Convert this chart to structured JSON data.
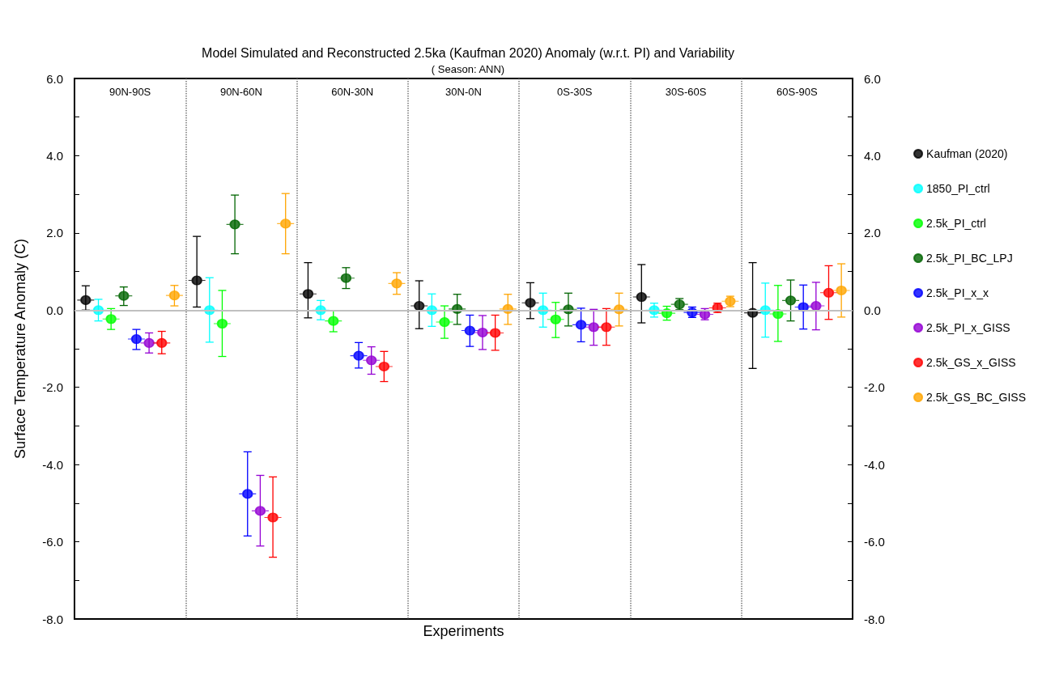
{
  "chart_data": {
    "type": "scatter",
    "title": "Model Simulated and Reconstructed 2.5ka (Kaufman 2020) Anomaly (w.r.t. PI) and Variability",
    "subtitle": "( Season: ANN)",
    "xlabel": "Experiments",
    "ylabel": "Surface Temperature Anomaly (C)",
    "categories": [
      "90N-90S",
      "90N-60N",
      "60N-30N",
      "30N-0N",
      "0S-30S",
      "30S-60S",
      "60S-90S"
    ],
    "series": [
      {
        "name": "Kaufman (2020)",
        "color": "#000000",
        "values": [
          0.26,
          0.77,
          0.42,
          0.11,
          0.19,
          0.34,
          -0.07
        ],
        "errors": [
          [
            0.0,
            0.63
          ],
          [
            0.08,
            1.91
          ],
          [
            -0.2,
            1.23
          ],
          [
            -0.48,
            0.76
          ],
          [
            -0.22,
            0.71
          ],
          [
            -0.33,
            1.18
          ],
          [
            -1.51,
            1.23
          ]
        ]
      },
      {
        "name": "1850_PI_ctrl",
        "color": "#00ffff",
        "values": [
          0,
          0,
          0,
          0,
          0,
          0,
          0
        ],
        "errors": [
          [
            -0.28,
            0.28
          ],
          [
            -0.83,
            0.84
          ],
          [
            -0.25,
            0.25
          ],
          [
            -0.42,
            0.42
          ],
          [
            -0.44,
            0.44
          ],
          [
            -0.18,
            0.18
          ],
          [
            -0.7,
            0.7
          ]
        ]
      },
      {
        "name": "2.5k_PI_ctrl",
        "color": "#00ff00",
        "values": [
          -0.23,
          -0.35,
          -0.28,
          -0.31,
          -0.24,
          -0.08,
          -0.1
        ],
        "errors": [
          [
            -0.5,
            0.04
          ],
          [
            -1.2,
            0.51
          ],
          [
            -0.56,
            -0.01
          ],
          [
            -0.73,
            0.11
          ],
          [
            -0.71,
            0.2
          ],
          [
            -0.26,
            0.1
          ],
          [
            -0.81,
            0.64
          ]
        ]
      },
      {
        "name": "2.5k_PI_BC_LPJ",
        "color": "#006400",
        "values": [
          0.37,
          2.22,
          0.83,
          0.03,
          0.02,
          0.15,
          0.25
        ],
        "errors": [
          [
            0.12,
            0.6
          ],
          [
            1.46,
            2.98
          ],
          [
            0.56,
            1.1
          ],
          [
            -0.37,
            0.41
          ],
          [
            -0.41,
            0.44
          ],
          [
            0.01,
            0.3
          ],
          [
            -0.28,
            0.78
          ]
        ]
      },
      {
        "name": "2.5k_PI_x_x",
        "color": "#0000ff",
        "values": [
          -0.75,
          -4.76,
          -1.18,
          -0.53,
          -0.38,
          -0.06,
          0.08
        ],
        "errors": [
          [
            -1.02,
            -0.5
          ],
          [
            -5.85,
            -3.67
          ],
          [
            -1.5,
            -0.84
          ],
          [
            -0.94,
            -0.13
          ],
          [
            -0.82,
            0.05
          ],
          [
            -0.19,
            0.08
          ],
          [
            -0.49,
            0.65
          ]
        ]
      },
      {
        "name": "2.5k_PI_x_GISS",
        "color": "#9400d3",
        "values": [
          -0.85,
          -5.2,
          -1.3,
          -0.58,
          -0.44,
          -0.11,
          0.11
        ],
        "errors": [
          [
            -1.11,
            -0.59
          ],
          [
            -6.11,
            -4.28
          ],
          [
            -1.66,
            -0.95
          ],
          [
            -1.02,
            -0.14
          ],
          [
            -0.91,
            0.02
          ],
          [
            -0.25,
            0.04
          ],
          [
            -0.51,
            0.72
          ]
        ]
      },
      {
        "name": "2.5k_GS_x_GISS",
        "color": "#ff0000",
        "values": [
          -0.85,
          -5.37,
          -1.46,
          -0.59,
          -0.44,
          0.06,
          0.45
        ],
        "errors": [
          [
            -1.13,
            -0.55
          ],
          [
            -6.4,
            -4.32
          ],
          [
            -1.85,
            -1.07
          ],
          [
            -1.04,
            -0.13
          ],
          [
            -0.91,
            0.04
          ],
          [
            -0.06,
            0.18
          ],
          [
            -0.24,
            1.15
          ]
        ]
      },
      {
        "name": "2.5k_GS_BC_GISS",
        "color": "#ffa500",
        "values": [
          0.38,
          2.24,
          0.69,
          0.03,
          0.02,
          0.23,
          0.51
        ],
        "errors": [
          [
            0.11,
            0.64
          ],
          [
            1.46,
            3.02
          ],
          [
            0.41,
            0.97
          ],
          [
            -0.37,
            0.41
          ],
          [
            -0.41,
            0.44
          ],
          [
            0.09,
            0.36
          ],
          [
            -0.18,
            1.2
          ]
        ]
      }
    ],
    "ylim": [
      -8,
      6
    ],
    "yticks": [
      {
        "value": -8,
        "label": "-8.0"
      },
      {
        "value": -7,
        "label": null
      },
      {
        "value": -6,
        "label": "-6.0"
      },
      {
        "value": -5,
        "label": null
      },
      {
        "value": -4,
        "label": "-4.0"
      },
      {
        "value": -3,
        "label": null
      },
      {
        "value": -2,
        "label": "-2.0"
      },
      {
        "value": -1,
        "label": null
      },
      {
        "value": 0,
        "label": "0.0"
      },
      {
        "value": 1,
        "label": null
      },
      {
        "value": 2,
        "label": "2.0"
      },
      {
        "value": 3,
        "label": null
      },
      {
        "value": 4,
        "label": "4.0"
      },
      {
        "value": 5,
        "label": null
      },
      {
        "value": 6,
        "label": "6.0"
      }
    ],
    "y2lim": [
      -8,
      6
    ],
    "y2ticks": [
      {
        "value": -8,
        "label": "-8.0"
      },
      {
        "value": -7,
        "label": null
      },
      {
        "value": -6,
        "label": "-6.0"
      },
      {
        "value": -5,
        "label": null
      },
      {
        "value": -4,
        "label": "-4.0"
      },
      {
        "value": -3,
        "label": null
      },
      {
        "value": -2,
        "label": "-2.0"
      },
      {
        "value": -1,
        "label": null
      },
      {
        "value": 0,
        "label": "0.0"
      },
      {
        "value": 1,
        "label": null
      },
      {
        "value": 2,
        "label": "2.0"
      },
      {
        "value": 3,
        "label": null
      },
      {
        "value": 4,
        "label": "4.0"
      },
      {
        "value": 5,
        "label": null
      },
      {
        "value": 6,
        "label": "6.0"
      }
    ],
    "ref_lines": [
      {
        "axis": "y",
        "value": 0,
        "color": "#c0c0c0"
      }
    ],
    "grid": "x",
    "legend": "right",
    "marker": "circle"
  }
}
